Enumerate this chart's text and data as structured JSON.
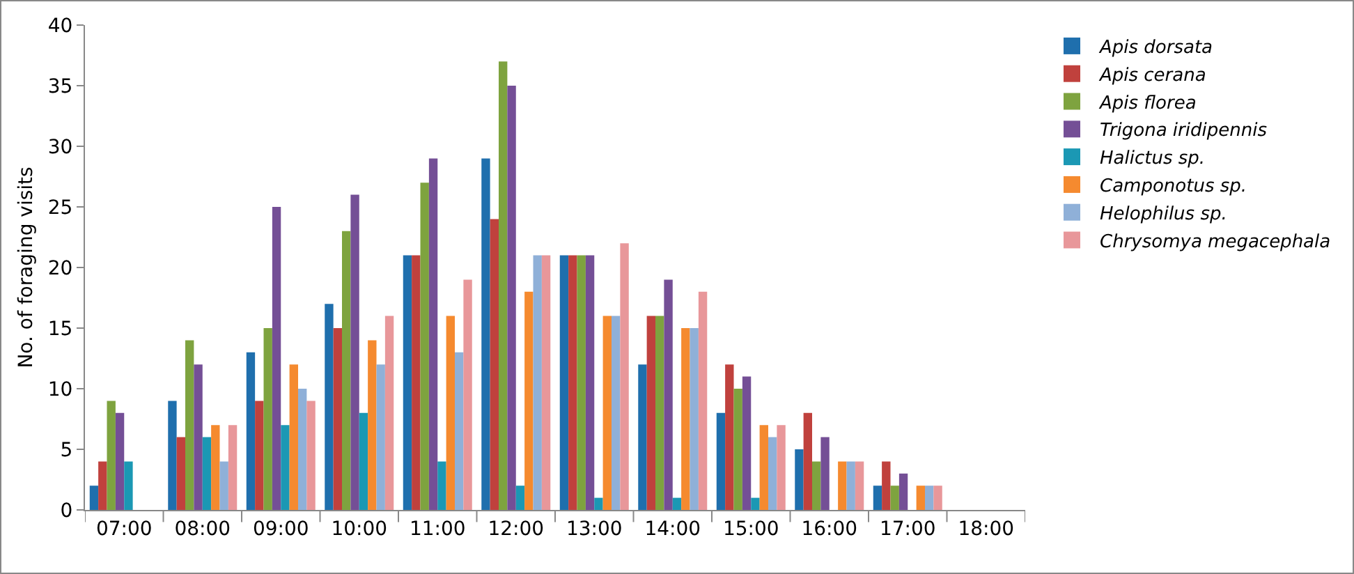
{
  "chart_data": {
    "type": "bar",
    "ylabel": "No. of foraging visits",
    "categories": [
      "07:00",
      "08:00",
      "09:00",
      "10:00",
      "11:00",
      "12:00",
      "13:00",
      "14:00",
      "15:00",
      "16:00",
      "17:00",
      "18:00"
    ],
    "series": [
      {
        "name": "Apis dorsata",
        "color": "#1f6fad",
        "values": [
          2,
          9,
          13,
          17,
          21,
          29,
          21,
          12,
          8,
          5,
          2,
          0
        ]
      },
      {
        "name": "Apis cerana",
        "color": "#c0413d",
        "values": [
          4,
          6,
          9,
          15,
          21,
          24,
          21,
          16,
          12,
          8,
          4,
          0
        ]
      },
      {
        "name": "Apis florea",
        "color": "#7ea33f",
        "values": [
          9,
          14,
          15,
          23,
          27,
          37,
          21,
          16,
          10,
          4,
          2,
          0
        ]
      },
      {
        "name": "Trigona iridipennis",
        "color": "#744f96",
        "values": [
          8,
          12,
          25,
          26,
          29,
          35,
          21,
          19,
          11,
          6,
          3,
          0
        ]
      },
      {
        "name": "Halictus sp.",
        "color": "#1b98b4",
        "values": [
          4,
          6,
          7,
          8,
          4,
          2,
          1,
          1,
          1,
          0,
          0,
          0
        ]
      },
      {
        "name": "Camponotus sp.",
        "color": "#f58a2f",
        "values": [
          0,
          7,
          12,
          14,
          16,
          18,
          16,
          15,
          7,
          4,
          2,
          0
        ]
      },
      {
        "name": "Helophilus sp.",
        "color": "#8fb0d8",
        "values": [
          0,
          4,
          10,
          12,
          13,
          21,
          16,
          15,
          6,
          4,
          2,
          0
        ]
      },
      {
        "name": "Chrysomya megacephala",
        "color": "#e8979a",
        "values": [
          0,
          7,
          9,
          16,
          19,
          21,
          22,
          18,
          7,
          4,
          2,
          0
        ]
      }
    ],
    "ylim": [
      0,
      40
    ],
    "yticks": [
      0,
      5,
      10,
      15,
      20,
      25,
      30,
      35,
      40
    ],
    "grid": false,
    "legend": "right"
  }
}
